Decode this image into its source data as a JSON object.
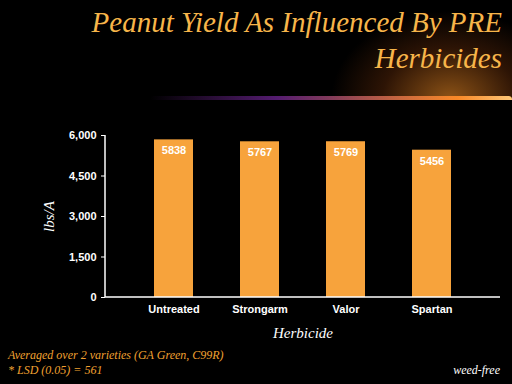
{
  "chart_data": {
    "type": "bar",
    "title": "Peanut Yield As Influenced By  PRE Herbicides",
    "categories": [
      "Untreated",
      "Strongarm",
      "Valor",
      "Spartan"
    ],
    "values": [
      5838,
      5767,
      5769,
      5456
    ],
    "color": "#f7a33c",
    "ylim": [
      0,
      6000
    ],
    "yticks": [
      0,
      1500,
      3000,
      4500,
      6000
    ],
    "xlabel": "Herbicide",
    "ylabel": "lbs/A",
    "data_labels": true,
    "annotations": [
      "Averaged over 2 varieties (GA Green, C99R)",
      "* LSD (0.05) = 561",
      "weed-free"
    ]
  }
}
